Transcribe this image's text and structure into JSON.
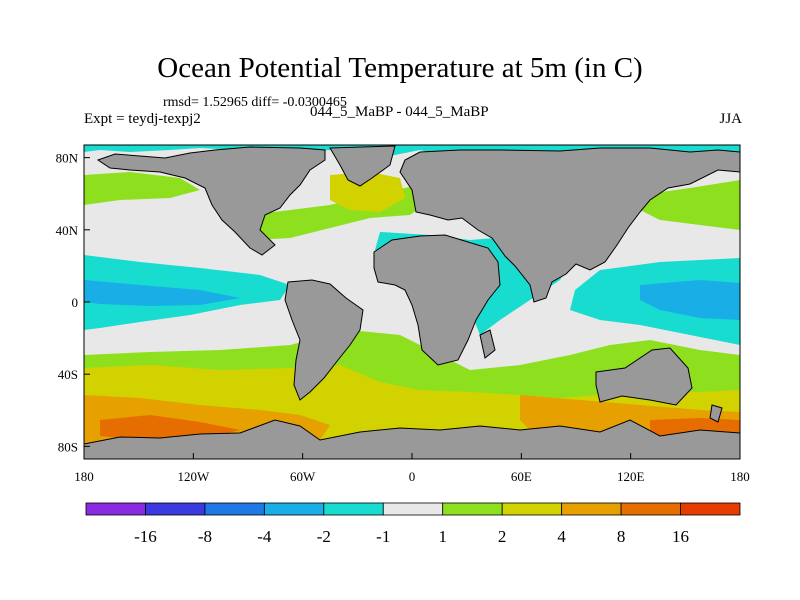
{
  "title": "Ocean Potential Temperature at 5m (in C)",
  "stats": "rmsd= 1.52965  diff= -0.0300465",
  "expt": "Expt = teydj-texpj2",
  "subtitle": "044_5_MaBP - 044_5_MaBP",
  "season": "JJA",
  "x_ticks": [
    {
      "lon": -180,
      "label": "180"
    },
    {
      "lon": -120,
      "label": "120W"
    },
    {
      "lon": -60,
      "label": "60W"
    },
    {
      "lon": 0,
      "label": "0"
    },
    {
      "lon": 60,
      "label": "60E"
    },
    {
      "lon": 120,
      "label": "120E"
    },
    {
      "lon": 180,
      "label": "180"
    }
  ],
  "y_ticks": [
    {
      "lat": 80,
      "label": "80N"
    },
    {
      "lat": 40,
      "label": "40N"
    },
    {
      "lat": 0,
      "label": "0"
    },
    {
      "lat": -40,
      "label": "40S"
    },
    {
      "lat": -80,
      "label": "80S"
    }
  ],
  "colorbar": {
    "colors": [
      "#8a2be2",
      "#3a3ae0",
      "#1e78e6",
      "#1aaee6",
      "#18dcd0",
      "#e8e8e8",
      "#8ee01e",
      "#d2d200",
      "#e6a000",
      "#e66e00",
      "#e63c00"
    ],
    "labels": [
      "-16",
      "-8",
      "-4",
      "-2",
      "-1",
      "1",
      "2",
      "4",
      "8",
      "16"
    ]
  },
  "colors": {
    "land": "#999999",
    "neutral": "#e8e8e8",
    "cyan": "#18dcd0",
    "lightblue": "#1aaee6",
    "green": "#8ee01e",
    "yellow": "#d2d200",
    "orange": "#e6a000",
    "darkorange": "#e66e00",
    "outline": "#000000"
  }
}
